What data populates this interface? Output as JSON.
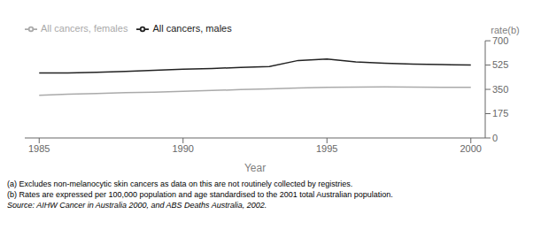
{
  "chart_data": {
    "type": "line",
    "x": [
      1985,
      1986,
      1987,
      1988,
      1989,
      1990,
      1991,
      1992,
      1993,
      1994,
      1995,
      1996,
      1997,
      1998,
      1999,
      2000
    ],
    "series": [
      {
        "name": "All cancers, males",
        "color": "#222222",
        "values": [
          468,
          468,
          473,
          480,
          488,
          495,
          500,
          508,
          515,
          558,
          568,
          548,
          538,
          532,
          528,
          526
        ]
      },
      {
        "name": "All cancers, females",
        "color": "#aaaaaa",
        "values": [
          308,
          315,
          320,
          326,
          330,
          336,
          342,
          348,
          354,
          360,
          364,
          366,
          368,
          366,
          365,
          365
        ]
      }
    ],
    "ylabel": "rate(b)",
    "xlabel": "Year",
    "xlim": [
      1984.5,
      2000.5
    ],
    "xticks": [
      1985,
      1990,
      1995,
      2000
    ],
    "ylim": [
      0,
      700
    ],
    "yticks": [
      0,
      175,
      350,
      525,
      700
    ],
    "grid": false,
    "legend": "upper left",
    "annotations": [
      "(a) Excludes non-melanocytic skin cancers as data on this are not routinely collected by registries.",
      "(b) Rates are expressed per 100,000 population and age standardised to the 2001 total Australian population.",
      "Source: AIHW Cancer in Australia 2000, and ABS Deaths Australia, 2002."
    ]
  }
}
